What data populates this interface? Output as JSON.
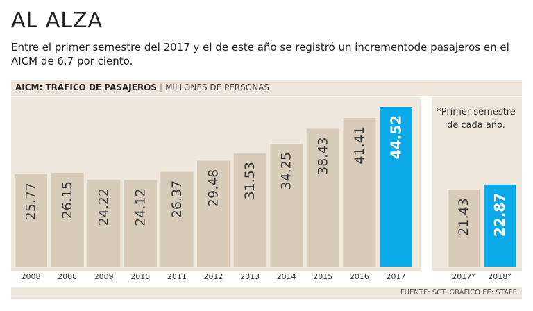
{
  "title": "AL ALZA",
  "subtitle": "Entre el primer semestre del 2017 y el de este año se registró un incrementode pasajeros en el AICM de 6.7 por ciento.",
  "header": {
    "bold": "AICM: TRÁFICO DE PASAJEROS",
    "separator": "|",
    "light": "MILLONES DE PERSONAS"
  },
  "note": "*Primer semestre de cada año.",
  "source": "FUENTE: SCT.  GRÁFICO EE: STAFF.",
  "colors": {
    "bar": "#d9cbba",
    "highlight": "#0aa9e8",
    "background": "#efe7dc"
  },
  "chart_data": [
    {
      "type": "bar",
      "title": "AICM: TRÁFICO DE PASAJEROS",
      "ylabel": "MILLONES DE PERSONAS",
      "categories": [
        "2008",
        "2008",
        "2009",
        "2010",
        "2011",
        "2012",
        "2013",
        "2014",
        "2015",
        "2016",
        "2017"
      ],
      "values": [
        25.77,
        26.15,
        24.22,
        24.12,
        26.37,
        29.48,
        31.53,
        34.25,
        38.43,
        41.41,
        44.52
      ],
      "labels": [
        "25.77",
        "26.15",
        "24.22",
        "24.12",
        "26.37",
        "29.48",
        "31.53",
        "34.25",
        "38.43",
        "41.41",
        "44.52"
      ],
      "highlight_index": 10
    },
    {
      "type": "bar",
      "title": "Primer semestre",
      "categories": [
        "2017*",
        "2018*"
      ],
      "values": [
        21.43,
        22.87
      ],
      "labels": [
        "21.43",
        "22.87"
      ],
      "highlight_index": 1
    }
  ]
}
